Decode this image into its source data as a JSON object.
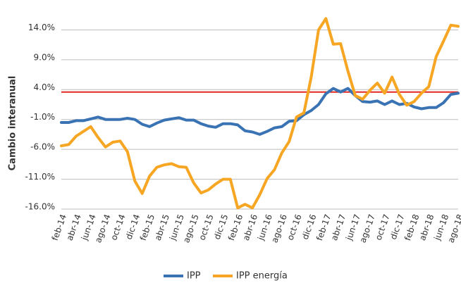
{
  "chart_data": {
    "type": "line",
    "y_label": "Cambio interanual",
    "categories": [
      "feb-14",
      null,
      "abr-14",
      null,
      "jun-14",
      null,
      "ago-14",
      null,
      "oct-14",
      null,
      "dic-14",
      null,
      "feb-15",
      null,
      "abr-15",
      null,
      "jun-15",
      null,
      "ago-15",
      null,
      "oct-15",
      null,
      "dic-15",
      null,
      "feb-16",
      null,
      "abr-16",
      null,
      "jun-16",
      null,
      "ago-16",
      null,
      "oct-16",
      null,
      "dic-16",
      null,
      "feb-17",
      null,
      "abr-17",
      null,
      "jun-17",
      null,
      "ago-17",
      null,
      "oct-17",
      null,
      "dic-17",
      null,
      "feb-18",
      null,
      "abr-18",
      null,
      "jun-18",
      null,
      "ago-18"
    ],
    "series": [
      {
        "name": "IPP",
        "color": "#3a73b4",
        "values": [
          -1.5,
          -1.5,
          -1.2,
          -1.2,
          -0.9,
          -0.6,
          -1.0,
          -1.0,
          -1.0,
          -0.8,
          -1.0,
          -1.8,
          -2.2,
          -1.6,
          -1.1,
          -0.9,
          -0.7,
          -1.1,
          -1.1,
          -1.7,
          -2.1,
          -2.3,
          -1.7,
          -1.7,
          -1.9,
          -2.9,
          -3.1,
          -3.5,
          -3.0,
          -2.4,
          -2.2,
          -1.3,
          -1.2,
          -0.2,
          0.5,
          1.5,
          3.3,
          4.2,
          3.6,
          4.2,
          3.0,
          2.0,
          1.9,
          2.1,
          1.5,
          2.1,
          1.5,
          1.7,
          1.1,
          0.8,
          1.0,
          1.0,
          1.8,
          3.2,
          3.4
        ]
      },
      {
        "name": "IPP energía",
        "color": "#f6a623",
        "values": [
          -5.4,
          -5.2,
          -3.8,
          -3.0,
          -2.2,
          -4.0,
          -5.6,
          -4.8,
          -4.6,
          -6.4,
          -11.3,
          -13.4,
          -10.5,
          -9.0,
          -8.6,
          -8.4,
          -8.9,
          -9.0,
          -11.6,
          -13.3,
          -12.8,
          -11.8,
          -11.0,
          -11.0,
          -15.8,
          -15.2,
          -15.8,
          -13.6,
          -10.9,
          -9.4,
          -6.6,
          -4.7,
          -0.6,
          0.1,
          6.1,
          14.0,
          15.9,
          11.6,
          11.7,
          7.1,
          3.0,
          2.4,
          3.9,
          5.1,
          3.4,
          6.1,
          3.2,
          1.4,
          2.0,
          3.4,
          4.5,
          9.5,
          12.1,
          14.8,
          14.6
        ]
      }
    ],
    "ylim": [
      -16,
      17
    ],
    "yticks": [
      {
        "value": 14,
        "label": "14.0%"
      },
      {
        "value": 9,
        "label": "9.0%"
      },
      {
        "value": 4,
        "label": "4.0%"
      },
      {
        "value": -1,
        "label": "-1.0%"
      },
      {
        "value": -6,
        "label": "-6.0%"
      },
      {
        "value": -11,
        "label": "-11.0%"
      },
      {
        "value": -16,
        "label": "-16.0%"
      }
    ],
    "grid": true,
    "reference_line": {
      "value": 3.6,
      "color": "#e3261f"
    },
    "legend": "bottom"
  }
}
